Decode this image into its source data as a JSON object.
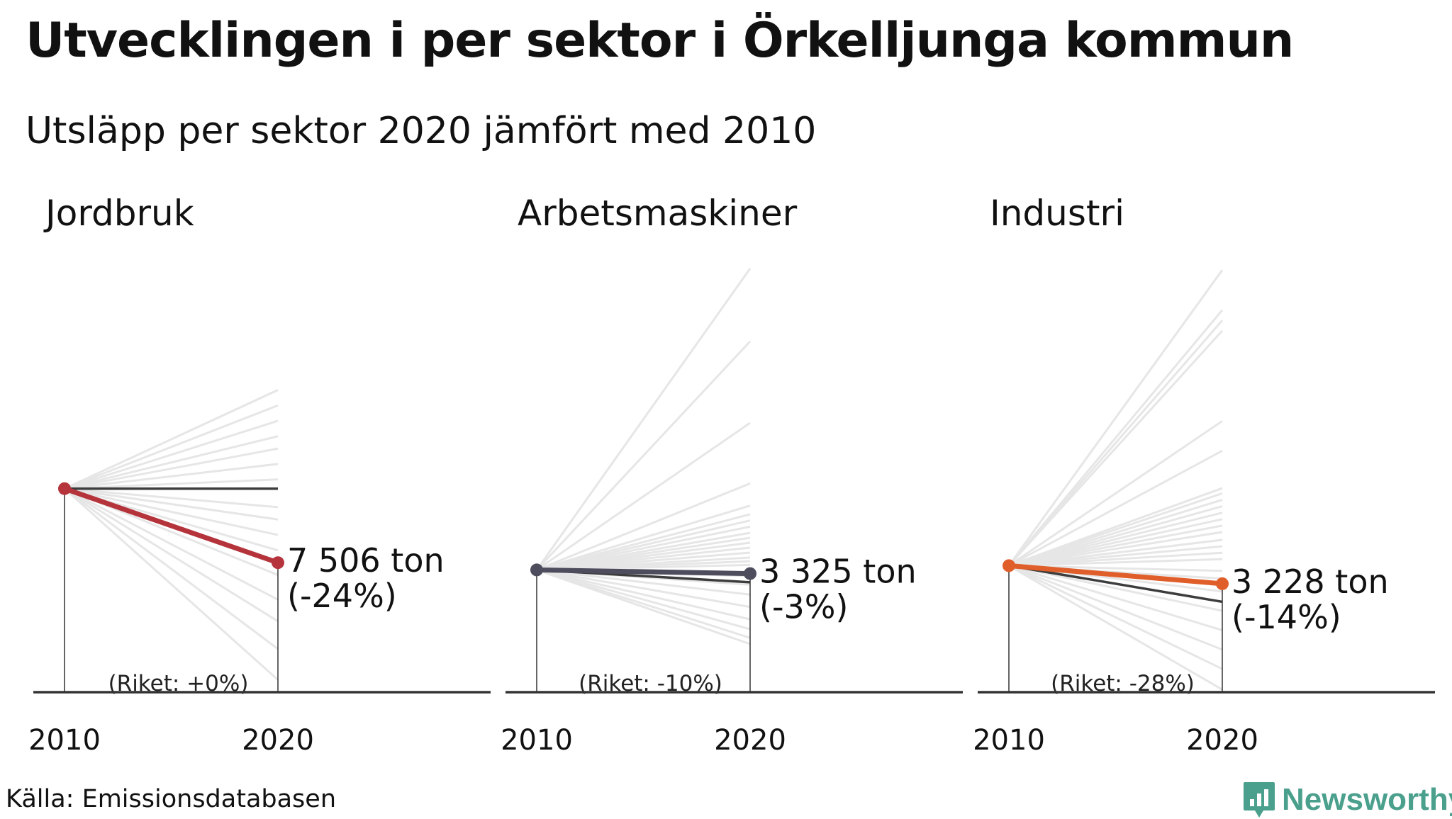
{
  "title": "Utvecklingen i per sektor i Örkelljunga kommun",
  "subtitle": "Utsläpp per sektor 2020 jämfört med 2010",
  "source": "Källa: Emissionsdatabasen",
  "brand": {
    "name": "Newsworthy",
    "icon": "newsworthy-logo-icon",
    "color": "#4aa08c"
  },
  "colors": {
    "context": "#e6e6e6",
    "national": "#3d3d3d",
    "axis": "#333333"
  },
  "chart_data": [
    {
      "type": "line",
      "title": "Jordbruk",
      "x": [
        "2010",
        "2020"
      ],
      "index_range": [
        -66,
        73
      ],
      "main": {
        "color": "#b5343c",
        "index_2010": 0,
        "index_2020": -24,
        "label_value": "7 506 ton",
        "label_change": "(-24%)"
      },
      "national": {
        "index_2020": 0,
        "label": "(Riket: +0%)"
      },
      "context_2020": [
        32,
        27,
        22,
        17,
        13,
        8,
        3,
        -6,
        -10,
        -15,
        -20,
        -28,
        -36,
        -43,
        -52,
        -62
      ]
    },
    {
      "type": "line",
      "title": "Arbetsmaskiner",
      "x": [
        "2010",
        "2020"
      ],
      "index_range": [
        -99,
        248
      ],
      "main": {
        "color": "#4e4d5e",
        "index_2010": 0,
        "index_2020": -3,
        "label_value": "3 325 ton",
        "label_change": "(-3%)"
      },
      "national": {
        "index_2020": -10,
        "label": "(Riket: -10%)"
      },
      "context_2020": [
        244,
        185,
        119,
        70,
        52,
        45,
        40,
        35,
        30,
        26,
        22,
        18,
        14,
        10,
        7,
        4,
        -5,
        -12,
        -20,
        -30,
        -40,
        -48,
        -55,
        -60
      ]
    },
    {
      "type": "line",
      "title": "Industri",
      "x": [
        "2010",
        "2020"
      ],
      "index_range": [
        -98,
        234
      ],
      "main": {
        "color": "#e05e2a",
        "index_2010": 0,
        "index_2020": -14,
        "label_value": "3 228 ton",
        "label_change": "(-14%)"
      },
      "national": {
        "index_2020": -28,
        "label": "(Riket: -28%)"
      },
      "context_2020": [
        229,
        198,
        190,
        182,
        112,
        89,
        60,
        56,
        51,
        46,
        41,
        36,
        31,
        26,
        20,
        15,
        10,
        5,
        -4,
        -10,
        -20,
        -35,
        -50,
        -65,
        -80,
        -96
      ]
    }
  ]
}
